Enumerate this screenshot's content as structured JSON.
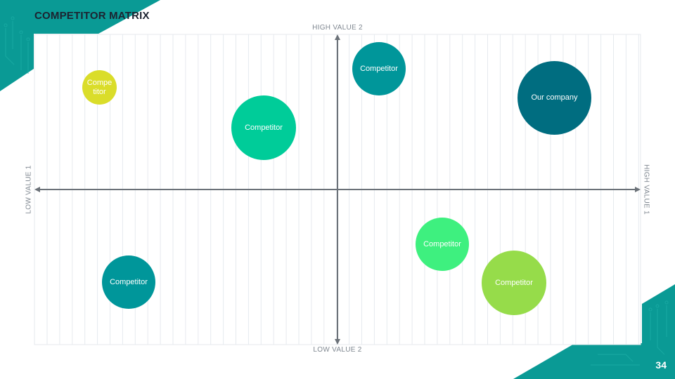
{
  "slide": {
    "title": "COMPETITOR MATRIX",
    "page_number": "34"
  },
  "axes": {
    "top": "HIGH VALUE 2",
    "bottom": "LOW VALUE 2",
    "left": "LOW VALUE 1",
    "right": "HIGH VALUE 1"
  },
  "colors": {
    "accent_teal": "#00969a",
    "accent_dark": "#006d80",
    "accent_mint": "#00cc99",
    "accent_green": "#3ef07f",
    "accent_lime": "#96dc4a",
    "accent_yellow": "#dadd2a",
    "axis": "#6b7178"
  },
  "bubbles": [
    {
      "label_1": "Compe",
      "label_2": "titor",
      "color": "#dadd2a"
    },
    {
      "label": "Competitor",
      "color": "#00cc99"
    },
    {
      "label": "Competitor",
      "color": "#00969a"
    },
    {
      "label": "Our company",
      "color": "#006d80"
    },
    {
      "label": "Competitor",
      "color": "#3ef07f"
    },
    {
      "label": "Competitor",
      "color": "#96dc4a"
    },
    {
      "label": "Competitor",
      "color": "#00969a"
    }
  ]
}
